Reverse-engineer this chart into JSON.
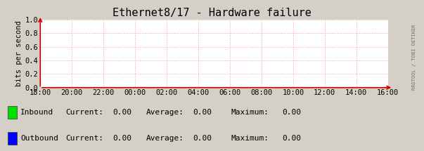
{
  "title": "Ethernet8/17 - Hardware failure",
  "ylabel": "bits per second",
  "x_tick_labels": [
    "18:00",
    "20:00",
    "22:00",
    "00:00",
    "02:00",
    "04:00",
    "06:00",
    "08:00",
    "10:00",
    "12:00",
    "14:00",
    "16:00"
  ],
  "ylim": [
    0.0,
    1.0
  ],
  "yticks": [
    0.0,
    0.2,
    0.4,
    0.6,
    0.8,
    1.0
  ],
  "bg_color": "#d4d0c8",
  "plot_bg_color": "#ffffff",
  "grid_color": "#ff9999",
  "title_color": "#000000",
  "axis_color": "#cc0000",
  "tick_color": "#000000",
  "inbound_color": "#00e000",
  "outbound_color": "#0000ff",
  "legend_items": [
    {
      "label": "Inbound",
      "color": "#00e000",
      "current": "0.00",
      "average": "0.00",
      "maximum": "0.00"
    },
    {
      "label": "Outbound",
      "color": "#0000ff",
      "current": "0.00",
      "average": "0.00",
      "maximum": "0.00"
    }
  ],
  "watermark": "RRDTOOL / TOBI OETIKER",
  "font_family": "monospace",
  "title_fontsize": 11,
  "label_fontsize": 7.5,
  "tick_fontsize": 7.5,
  "legend_fontsize": 8,
  "watermark_fontsize": 5
}
